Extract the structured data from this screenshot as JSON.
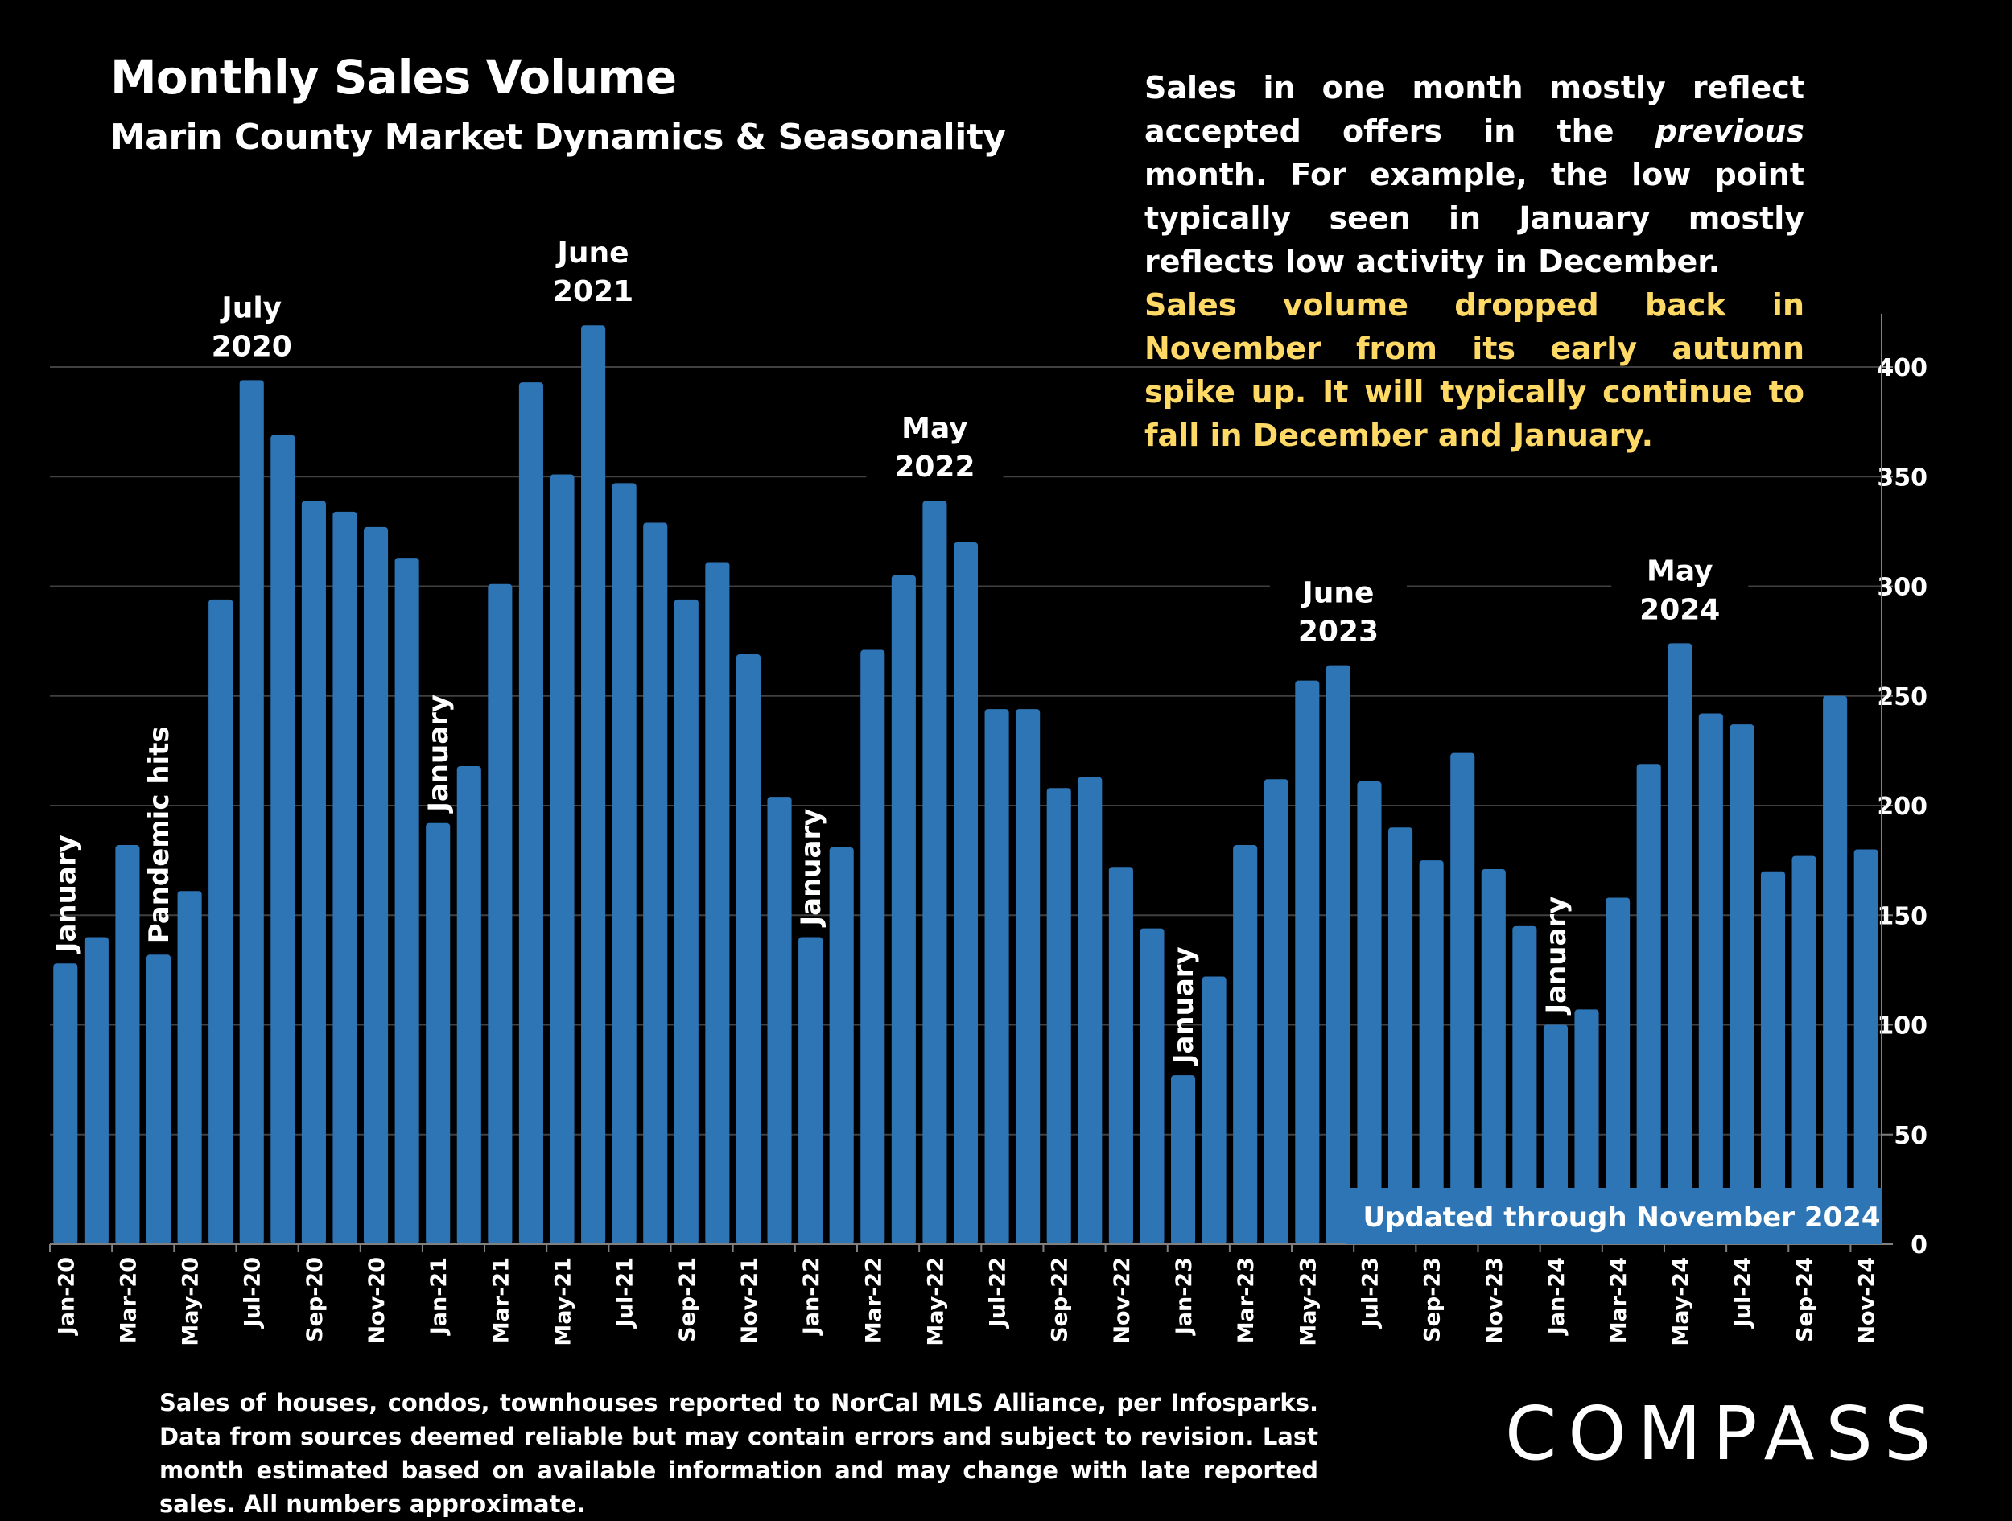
{
  "header": {
    "title": "Monthly Sales Volume",
    "subtitle": "Marin County Market Dynamics & Seasonality"
  },
  "notes": {
    "white_before": "Sales in one month mostly reflect accepted offers in the ",
    "white_italic": "previous",
    "white_after": " month. For example, the low point typically seen in January mostly reflects low activity in December.",
    "yellow": "Sales volume dropped back in November from its early autumn spike up. It will typically continue to fall in December and January."
  },
  "footnote": "Sales of houses, condos, townhouses reported to NorCal MLS Alliance, per Infosparks. Data from sources deemed reliable but may contain errors and subject to revision. Last month estimated based on available information and may change with late reported sales. All numbers approximate.",
  "logo": "COMPASS",
  "updated_label": "Updated through November 2024",
  "colors": {
    "bar": "#2E75B6",
    "highlight_text": "#FFD966",
    "gridline": "#404040",
    "background": "#000000"
  },
  "chart_data": {
    "type": "bar",
    "title": "Monthly Sales Volume",
    "subtitle": "Marin County Market Dynamics & Seasonality",
    "xlabel": "",
    "ylabel": "",
    "ylim": [
      0,
      400
    ],
    "y_ticks": [
      0,
      50,
      100,
      150,
      200,
      250,
      300,
      350,
      400
    ],
    "y_axis_side": "right",
    "grid": true,
    "legend": "none",
    "categories": [
      "Jan-20",
      "Feb-20",
      "Mar-20",
      "Apr-20",
      "May-20",
      "Jun-20",
      "Jul-20",
      "Aug-20",
      "Sep-20",
      "Oct-20",
      "Nov-20",
      "Dec-20",
      "Jan-21",
      "Feb-21",
      "Mar-21",
      "Apr-21",
      "May-21",
      "Jun-21",
      "Jul-21",
      "Aug-21",
      "Sep-21",
      "Oct-21",
      "Nov-21",
      "Dec-21",
      "Jan-22",
      "Feb-22",
      "Mar-22",
      "Apr-22",
      "May-22",
      "Jun-22",
      "Jul-22",
      "Aug-22",
      "Sep-22",
      "Oct-22",
      "Nov-22",
      "Dec-22",
      "Jan-23",
      "Feb-23",
      "Mar-23",
      "Apr-23",
      "May-23",
      "Jun-23",
      "Jul-23",
      "Aug-23",
      "Sep-23",
      "Oct-23",
      "Nov-23",
      "Dec-23",
      "Jan-24",
      "Feb-24",
      "Mar-24",
      "Apr-24",
      "May-24",
      "Jun-24",
      "Jul-24",
      "Aug-24",
      "Sep-24",
      "Oct-24",
      "Nov-24"
    ],
    "tick_labels": [
      "Jan-20",
      "Mar-20",
      "May-20",
      "Jul-20",
      "Sep-20",
      "Nov-20",
      "Jan-21",
      "Mar-21",
      "May-21",
      "Jul-21",
      "Sep-21",
      "Nov-21",
      "Jan-22",
      "Mar-22",
      "May-22",
      "Jul-22",
      "Sep-22",
      "Nov-22",
      "Jan-23",
      "Mar-23",
      "May-23",
      "Jul-23",
      "Sep-23",
      "Nov-23",
      "Jan-24",
      "Mar-24",
      "May-24",
      "Jul-24",
      "Sep-24",
      "Nov-24"
    ],
    "series": [
      {
        "name": "Monthly Sales",
        "values": [
          128,
          140,
          182,
          132,
          161,
          294,
          394,
          369,
          339,
          334,
          327,
          313,
          192,
          218,
          301,
          393,
          351,
          419,
          347,
          329,
          294,
          311,
          269,
          204,
          140,
          181,
          271,
          305,
          339,
          320,
          244,
          244,
          208,
          213,
          172,
          144,
          77,
          122,
          182,
          212,
          257,
          264,
          211,
          190,
          175,
          224,
          171,
          145,
          100,
          107,
          158,
          219,
          274,
          242,
          237,
          170,
          177,
          250,
          180
        ]
      }
    ],
    "annotations": [
      {
        "text": "January",
        "category": "Jan-20",
        "orientation": "vertical"
      },
      {
        "text": "Pandemic hits",
        "category": "Apr-20",
        "orientation": "vertical"
      },
      {
        "text": "July 2020",
        "lines": [
          "July",
          "2020"
        ],
        "category": "Jul-20",
        "orientation": "horizontal"
      },
      {
        "text": "January",
        "category": "Jan-21",
        "orientation": "vertical"
      },
      {
        "text": "June 2021",
        "lines": [
          "June",
          "2021"
        ],
        "category": "Jun-21",
        "orientation": "horizontal"
      },
      {
        "text": "January",
        "category": "Jan-22",
        "orientation": "vertical"
      },
      {
        "text": "May 2022",
        "lines": [
          "May",
          "2022"
        ],
        "category": "May-22",
        "orientation": "horizontal"
      },
      {
        "text": "January",
        "category": "Jan-23",
        "orientation": "vertical"
      },
      {
        "text": "June 2023",
        "lines": [
          "June",
          "2023"
        ],
        "category": "Jun-23",
        "orientation": "horizontal"
      },
      {
        "text": "January",
        "category": "Jan-24",
        "orientation": "vertical"
      },
      {
        "text": "May 2024",
        "lines": [
          "May",
          "2024"
        ],
        "category": "May-24",
        "orientation": "horizontal"
      }
    ]
  }
}
